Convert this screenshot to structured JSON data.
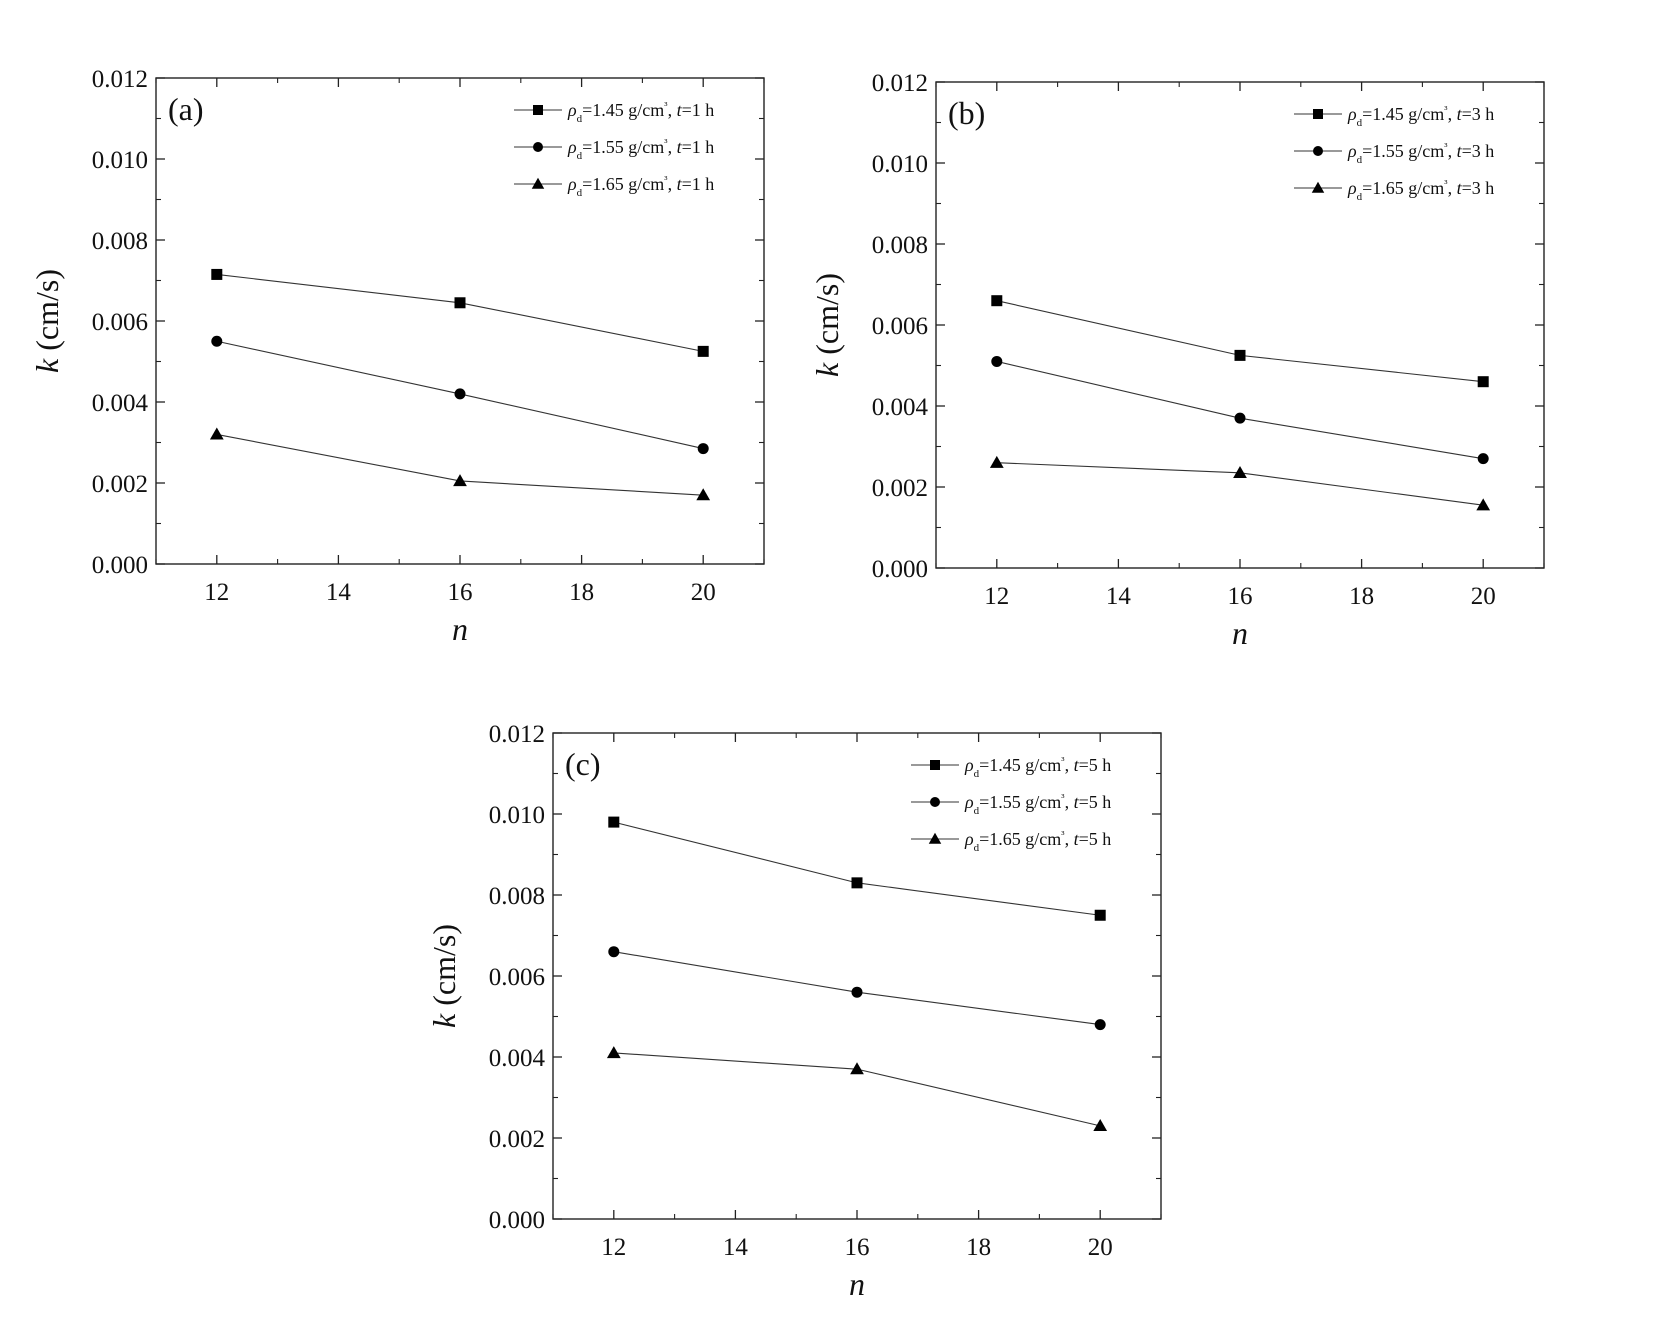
{
  "chart_data": [
    {
      "type": "line",
      "panel_label": "(a)",
      "xlabel": "n",
      "ylabel": "k (cm/s)",
      "xlim": [
        11,
        21
      ],
      "ylim": [
        0,
        0.012
      ],
      "x_ticks": [
        "12",
        "14",
        "16",
        "18",
        "20"
      ],
      "y_ticks": [
        "0.000",
        "0.002",
        "0.004",
        "0.006",
        "0.008",
        "0.010",
        "0.012"
      ],
      "legend_position": "top-right",
      "x": [
        12,
        16,
        20
      ],
      "series": [
        {
          "name": "ρd=1.45 g/cm³, t=1 h",
          "marker": "square",
          "values": [
            0.00715,
            0.00645,
            0.00525
          ]
        },
        {
          "name": "ρd=1.55 g/cm³, t=1 h",
          "marker": "circle",
          "values": [
            0.0055,
            0.0042,
            0.00285
          ]
        },
        {
          "name": "ρd=1.65 g/cm³, t=1 h",
          "marker": "triangle",
          "values": [
            0.0032,
            0.00205,
            0.0017
          ]
        }
      ]
    },
    {
      "type": "line",
      "panel_label": "(b)",
      "xlabel": "n",
      "ylabel": "k (cm/s)",
      "xlim": [
        11,
        21
      ],
      "ylim": [
        0,
        0.012
      ],
      "x_ticks": [
        "12",
        "14",
        "16",
        "18",
        "20"
      ],
      "y_ticks": [
        "0.000",
        "0.002",
        "0.004",
        "0.006",
        "0.008",
        "0.010",
        "0.012"
      ],
      "legend_position": "top-right",
      "x": [
        12,
        16,
        20
      ],
      "series": [
        {
          "name": "ρd=1.45 g/cm³, t=3 h",
          "marker": "square",
          "values": [
            0.0066,
            0.00525,
            0.0046
          ]
        },
        {
          "name": "ρd=1.55 g/cm³, t=3 h",
          "marker": "circle",
          "values": [
            0.0051,
            0.0037,
            0.0027
          ]
        },
        {
          "name": "ρd=1.65 g/cm³, t=3 h",
          "marker": "triangle",
          "values": [
            0.0026,
            0.00235,
            0.00155
          ]
        }
      ]
    },
    {
      "type": "line",
      "panel_label": "(c)",
      "xlabel": "n",
      "ylabel": "k (cm/s)",
      "xlim": [
        11,
        21
      ],
      "ylim": [
        0,
        0.012
      ],
      "x_ticks": [
        "12",
        "14",
        "16",
        "18",
        "20"
      ],
      "y_ticks": [
        "0.000",
        "0.002",
        "0.004",
        "0.006",
        "0.008",
        "0.010",
        "0.012"
      ],
      "legend_position": "top-right",
      "x": [
        12,
        16,
        20
      ],
      "series": [
        {
          "name": "ρd=1.45 g/cm³, t=5 h",
          "marker": "square",
          "values": [
            0.0098,
            0.0083,
            0.0075
          ]
        },
        {
          "name": "ρd=1.55 g/cm³, t=5 h",
          "marker": "circle",
          "values": [
            0.0066,
            0.0056,
            0.0048
          ]
        },
        {
          "name": "ρd=1.65 g/cm³, t=5 h",
          "marker": "triangle",
          "values": [
            0.0041,
            0.0037,
            0.0023
          ]
        }
      ]
    }
  ]
}
